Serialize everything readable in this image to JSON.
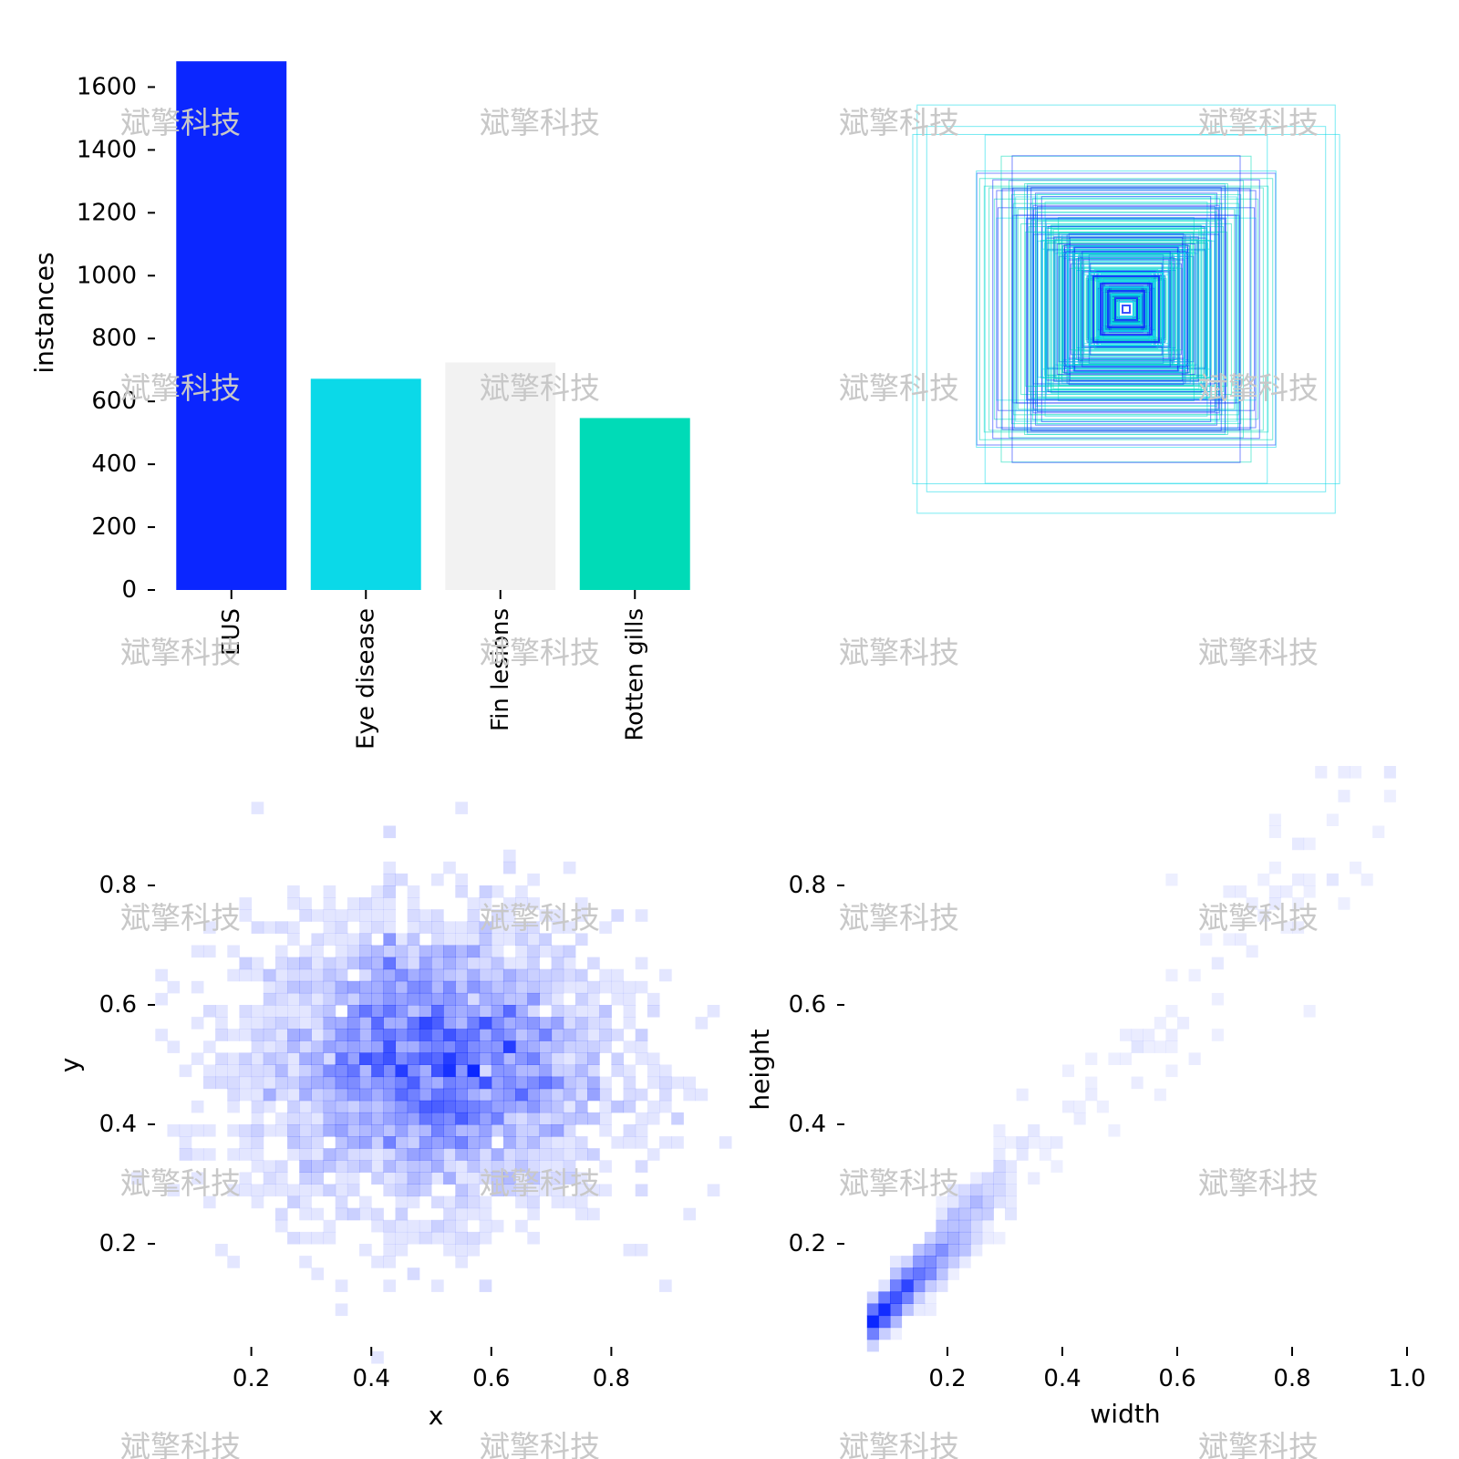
{
  "chart_data": [
    {
      "type": "bar",
      "categories": [
        "EUS",
        "Eye disease",
        "Fin lesions",
        "Rotten gills"
      ],
      "values": [
        1682,
        672,
        724,
        547
      ],
      "colors": [
        "#0b26ff",
        "#0bd9e8",
        "#f2f2f2",
        "#00dbb7"
      ],
      "ylabel": "instances",
      "xlabel": "",
      "ylim": [
        0,
        1700
      ],
      "yticks": [
        0,
        200,
        400,
        600,
        800,
        1000,
        1200,
        1400,
        1600
      ],
      "ytick_labels": [
        "0",
        "200",
        "400",
        "600",
        "800",
        "1000",
        "1200",
        "1400",
        "1600"
      ],
      "grid": false,
      "legend": "none"
    },
    {
      "type": "scatter",
      "description_type": "box-overlay",
      "colors": [
        "#0b26ff",
        "#0bd9e8",
        "#00dbb7"
      ],
      "axes": "off"
    },
    {
      "type": "heatmap",
      "xlabel": "x",
      "ylabel": "y",
      "xlim": [
        0.0,
        1.0
      ],
      "ylim": [
        0.0,
        1.0
      ],
      "xticks": [
        0.2,
        0.4,
        0.6,
        0.8
      ],
      "xtick_labels": [
        "0.2",
        "0.4",
        "0.6",
        "0.8"
      ],
      "yticks": [
        0.2,
        0.4,
        0.6,
        0.8
      ],
      "ytick_labels": [
        "0.2",
        "0.4",
        "0.6",
        "0.8"
      ],
      "center": [
        0.5,
        0.5
      ],
      "spread": [
        0.15,
        0.12
      ],
      "color": "#0b26ff",
      "grid": false
    },
    {
      "type": "heatmap",
      "xlabel": "width",
      "ylabel": "height",
      "xlim": [
        0.0,
        1.0
      ],
      "ylim": [
        0.0,
        1.0
      ],
      "xticks": [
        0.2,
        0.4,
        0.6,
        0.8,
        1.0
      ],
      "xtick_labels": [
        "0.2",
        "0.4",
        "0.6",
        "0.8",
        "1.0"
      ],
      "yticks": [
        0.2,
        0.4,
        0.6,
        0.8
      ],
      "ytick_labels": [
        "0.2",
        "0.4",
        "0.6",
        "0.8"
      ],
      "trend": "height ≈ width",
      "color": "#0b26ff",
      "grid": false
    }
  ],
  "watermark": "斌擎科技"
}
